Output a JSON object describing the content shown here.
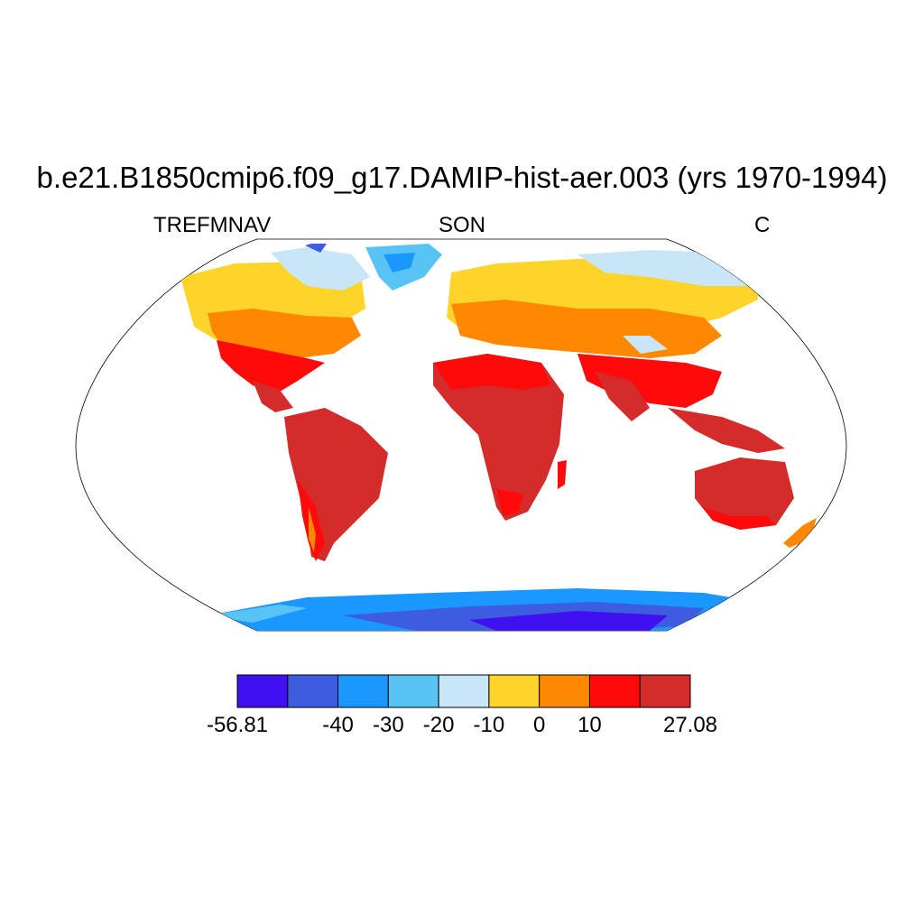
{
  "title": "b.e21.B1850cmip6.f09_g17.DAMIP-hist-aer.003 (yrs 1970-1994)",
  "subtitle_left": "TREFMNAV",
  "subtitle_center": "SON",
  "subtitle_right": "C",
  "colorbar": {
    "colors": [
      "#4010f0",
      "#3d5ce0",
      "#1a98ff",
      "#58c4f6",
      "#c8e6f7",
      "#ffd42a",
      "#ff8800",
      "#ff0a0a",
      "#d42b2b"
    ],
    "labels": [
      "-56.81",
      "-40",
      "-30",
      "-20",
      "-10",
      "0",
      "10",
      "27.08"
    ],
    "label_positions": [
      0,
      2,
      3,
      4,
      5,
      6,
      7,
      9
    ]
  }
}
